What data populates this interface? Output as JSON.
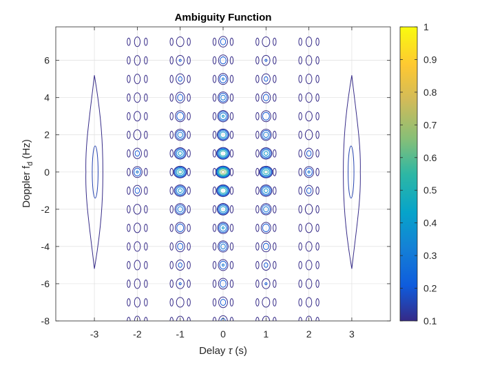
{
  "chart_data": {
    "type": "contour",
    "title": "Ambiguity Function",
    "xlabel": {
      "prefix": "Delay ",
      "symbol": "τ",
      "suffix": " (s)"
    },
    "ylabel": {
      "prefix": "Doppler f",
      "subscript": "d",
      "suffix": " (Hz)"
    },
    "xlim": [
      -3.9,
      3.9
    ],
    "ylim": [
      -8,
      7.8
    ],
    "xticks": [
      -3,
      -2,
      -1,
      0,
      1,
      2,
      3
    ],
    "yticks": [
      -8,
      -6,
      -4,
      -2,
      0,
      2,
      4,
      6
    ],
    "grid": true,
    "colorbar": {
      "colormap": "parula",
      "range": [
        0.1,
        1
      ],
      "ticks": [
        "0.1",
        "0.2",
        "0.3",
        "0.4",
        "0.5",
        "0.6",
        "0.7",
        "0.8",
        "0.9",
        "1"
      ]
    },
    "lobe_delays": [
      -2,
      -1,
      0,
      1,
      2
    ],
    "outer_lobe_delays": [
      -3,
      3
    ],
    "doppler_rows": [
      -8,
      -7,
      -6,
      -5,
      -4,
      -3,
      -2,
      -1,
      0,
      1,
      2,
      3,
      4,
      5,
      6,
      7
    ],
    "lobe_peak_levels": {
      "0": 0.75,
      "1": 0.55,
      "2": 0.3
    }
  }
}
